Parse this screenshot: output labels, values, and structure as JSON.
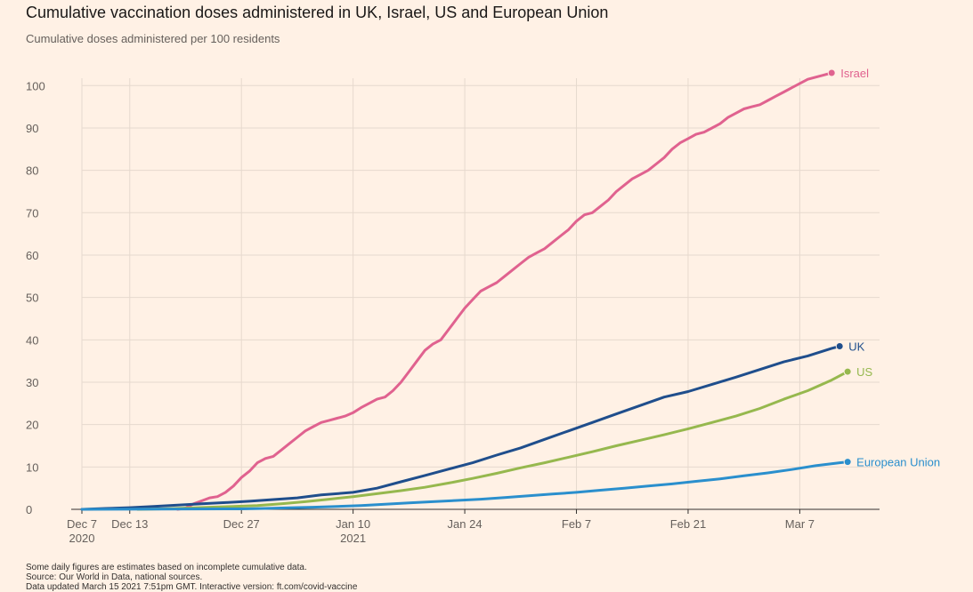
{
  "title": "Cumulative vaccination doses administered in UK, Israel, US and European Union",
  "subtitle": "Cumulative doses administered per 100 residents",
  "footnotes": [
    "Some daily figures are estimates based on incomplete cumulative data.",
    "Source: Our World in Data, national sources.",
    "Data updated March 15 2021 7:51pm GMT. Interactive version: ft.com/covid-vaccine"
  ],
  "colors": {
    "background": "#fff1e5",
    "grid": "#e6d9ce",
    "axis": "#33302e",
    "text": "#66605c"
  },
  "chart_data": {
    "type": "line",
    "title": "Cumulative vaccination doses administered in UK, Israel, US and European Union",
    "subtitle": "Cumulative doses administered per 100 residents",
    "x_type": "date",
    "x_range": [
      "2020-12-07",
      "2021-03-17"
    ],
    "ylim": [
      0,
      103
    ],
    "yticks": [
      0,
      10,
      20,
      30,
      40,
      50,
      60,
      70,
      80,
      90,
      100
    ],
    "xticks": [
      {
        "date": "2020-12-07",
        "label": "Dec 7",
        "sublabel": "2020"
      },
      {
        "date": "2020-12-13",
        "label": "Dec 13",
        "sublabel": ""
      },
      {
        "date": "2020-12-27",
        "label": "Dec 27",
        "sublabel": ""
      },
      {
        "date": "2021-01-10",
        "label": "Jan 10",
        "sublabel": "2021"
      },
      {
        "date": "2021-01-24",
        "label": "Jan 24",
        "sublabel": ""
      },
      {
        "date": "2021-02-07",
        "label": "Feb 7",
        "sublabel": ""
      },
      {
        "date": "2021-02-21",
        "label": "Feb 21",
        "sublabel": ""
      },
      {
        "date": "2021-03-07",
        "label": "Mar 7",
        "sublabel": ""
      }
    ],
    "grid": true,
    "legend": "direct labels at line ends",
    "series": [
      {
        "name": "Israel",
        "color": "#e0628f",
        "points": [
          [
            "2020-12-19",
            0
          ],
          [
            "2020-12-20",
            0.3
          ],
          [
            "2020-12-21",
            1.3
          ],
          [
            "2020-12-22",
            2.0
          ],
          [
            "2020-12-23",
            2.7
          ],
          [
            "2020-12-24",
            3.0
          ],
          [
            "2020-12-25",
            4.0
          ],
          [
            "2020-12-26",
            5.5
          ],
          [
            "2020-12-27",
            7.5
          ],
          [
            "2020-12-28",
            9.0
          ],
          [
            "2020-12-29",
            11.0
          ],
          [
            "2020-12-30",
            12.0
          ],
          [
            "2020-12-31",
            12.5
          ],
          [
            "2021-01-01",
            14.0
          ],
          [
            "2021-01-02",
            15.5
          ],
          [
            "2021-01-03",
            17.0
          ],
          [
            "2021-01-04",
            18.5
          ],
          [
            "2021-01-05",
            19.5
          ],
          [
            "2021-01-06",
            20.5
          ],
          [
            "2021-01-07",
            21.0
          ],
          [
            "2021-01-08",
            21.5
          ],
          [
            "2021-01-09",
            22.0
          ],
          [
            "2021-01-10",
            22.8
          ],
          [
            "2021-01-11",
            24.0
          ],
          [
            "2021-01-12",
            25.0
          ],
          [
            "2021-01-13",
            26.0
          ],
          [
            "2021-01-14",
            26.5
          ],
          [
            "2021-01-15",
            28.0
          ],
          [
            "2021-01-16",
            30.0
          ],
          [
            "2021-01-17",
            32.5
          ],
          [
            "2021-01-18",
            35.0
          ],
          [
            "2021-01-19",
            37.5
          ],
          [
            "2021-01-20",
            39.0
          ],
          [
            "2021-01-21",
            40.0
          ],
          [
            "2021-01-22",
            42.5
          ],
          [
            "2021-01-23",
            45.0
          ],
          [
            "2021-01-24",
            47.5
          ],
          [
            "2021-01-25",
            49.5
          ],
          [
            "2021-01-26",
            51.5
          ],
          [
            "2021-01-27",
            52.5
          ],
          [
            "2021-01-28",
            53.5
          ],
          [
            "2021-01-29",
            55.0
          ],
          [
            "2021-01-30",
            56.5
          ],
          [
            "2021-01-31",
            58.0
          ],
          [
            "2021-02-01",
            59.5
          ],
          [
            "2021-02-02",
            60.5
          ],
          [
            "2021-02-03",
            61.5
          ],
          [
            "2021-02-04",
            63.0
          ],
          [
            "2021-02-05",
            64.5
          ],
          [
            "2021-02-06",
            66.0
          ],
          [
            "2021-02-07",
            68.0
          ],
          [
            "2021-02-08",
            69.5
          ],
          [
            "2021-02-09",
            70.0
          ],
          [
            "2021-02-10",
            71.5
          ],
          [
            "2021-02-11",
            73.0
          ],
          [
            "2021-02-12",
            75.0
          ],
          [
            "2021-02-13",
            76.5
          ],
          [
            "2021-02-14",
            78.0
          ],
          [
            "2021-02-15",
            79.0
          ],
          [
            "2021-02-16",
            80.0
          ],
          [
            "2021-02-17",
            81.5
          ],
          [
            "2021-02-18",
            83.0
          ],
          [
            "2021-02-19",
            85.0
          ],
          [
            "2021-02-20",
            86.5
          ],
          [
            "2021-02-21",
            87.5
          ],
          [
            "2021-02-22",
            88.5
          ],
          [
            "2021-02-23",
            89.0
          ],
          [
            "2021-02-24",
            90.0
          ],
          [
            "2021-02-25",
            91.0
          ],
          [
            "2021-02-26",
            92.5
          ],
          [
            "2021-02-27",
            93.5
          ],
          [
            "2021-02-28",
            94.5
          ],
          [
            "2021-03-01",
            95.0
          ],
          [
            "2021-03-02",
            95.5
          ],
          [
            "2021-03-03",
            96.5
          ],
          [
            "2021-03-04",
            97.5
          ],
          [
            "2021-03-05",
            98.5
          ],
          [
            "2021-03-06",
            99.5
          ],
          [
            "2021-03-07",
            100.5
          ],
          [
            "2021-03-08",
            101.5
          ],
          [
            "2021-03-09",
            102.0
          ],
          [
            "2021-03-10",
            102.5
          ],
          [
            "2021-03-11",
            103.0
          ]
        ]
      },
      {
        "name": "UK",
        "color": "#1f4e8c",
        "points": [
          [
            "2020-12-07",
            0
          ],
          [
            "2020-12-10",
            0.2
          ],
          [
            "2020-12-13",
            0.4
          ],
          [
            "2020-12-16",
            0.7
          ],
          [
            "2020-12-19",
            1.0
          ],
          [
            "2020-12-22",
            1.3
          ],
          [
            "2020-12-25",
            1.6
          ],
          [
            "2020-12-28",
            1.9
          ],
          [
            "2020-12-31",
            2.3
          ],
          [
            "2021-01-03",
            2.7
          ],
          [
            "2021-01-06",
            3.4
          ],
          [
            "2021-01-10",
            4.0
          ],
          [
            "2021-01-13",
            5.0
          ],
          [
            "2021-01-16",
            6.5
          ],
          [
            "2021-01-19",
            8.0
          ],
          [
            "2021-01-22",
            9.5
          ],
          [
            "2021-01-25",
            11.0
          ],
          [
            "2021-01-28",
            12.8
          ],
          [
            "2021-01-31",
            14.5
          ],
          [
            "2021-02-03",
            16.5
          ],
          [
            "2021-02-06",
            18.5
          ],
          [
            "2021-02-09",
            20.5
          ],
          [
            "2021-02-12",
            22.5
          ],
          [
            "2021-02-15",
            24.5
          ],
          [
            "2021-02-18",
            26.5
          ],
          [
            "2021-02-21",
            27.8
          ],
          [
            "2021-02-24",
            29.5
          ],
          [
            "2021-02-27",
            31.2
          ],
          [
            "2021-03-02",
            33.0
          ],
          [
            "2021-03-05",
            34.8
          ],
          [
            "2021-03-08",
            36.2
          ],
          [
            "2021-03-11",
            38.0
          ],
          [
            "2021-03-12",
            38.5
          ]
        ]
      },
      {
        "name": "US",
        "color": "#96b84e",
        "points": [
          [
            "2020-12-14",
            0
          ],
          [
            "2020-12-17",
            0.1
          ],
          [
            "2020-12-20",
            0.3
          ],
          [
            "2020-12-23",
            0.5
          ],
          [
            "2020-12-26",
            0.7
          ],
          [
            "2020-12-29",
            0.9
          ],
          [
            "2021-01-01",
            1.3
          ],
          [
            "2021-01-04",
            1.8
          ],
          [
            "2021-01-07",
            2.4
          ],
          [
            "2021-01-10",
            3.0
          ],
          [
            "2021-01-13",
            3.7
          ],
          [
            "2021-01-16",
            4.4
          ],
          [
            "2021-01-19",
            5.2
          ],
          [
            "2021-01-22",
            6.2
          ],
          [
            "2021-01-25",
            7.3
          ],
          [
            "2021-01-28",
            8.5
          ],
          [
            "2021-01-31",
            9.8
          ],
          [
            "2021-02-03",
            11.0
          ],
          [
            "2021-02-06",
            12.3
          ],
          [
            "2021-02-09",
            13.6
          ],
          [
            "2021-02-12",
            15.0
          ],
          [
            "2021-02-15",
            16.3
          ],
          [
            "2021-02-18",
            17.6
          ],
          [
            "2021-02-21",
            19.0
          ],
          [
            "2021-02-24",
            20.5
          ],
          [
            "2021-02-27",
            22.0
          ],
          [
            "2021-03-02",
            23.8
          ],
          [
            "2021-03-05",
            26.0
          ],
          [
            "2021-03-08",
            28.0
          ],
          [
            "2021-03-11",
            30.5
          ],
          [
            "2021-03-13",
            32.5
          ]
        ]
      },
      {
        "name": "European Union",
        "color": "#2a8fcd",
        "points": [
          [
            "2020-12-07",
            0
          ],
          [
            "2020-12-27",
            0.1
          ],
          [
            "2020-12-30",
            0.2
          ],
          [
            "2021-01-02",
            0.35
          ],
          [
            "2021-01-05",
            0.5
          ],
          [
            "2021-01-08",
            0.7
          ],
          [
            "2021-01-11",
            0.9
          ],
          [
            "2021-01-14",
            1.2
          ],
          [
            "2021-01-17",
            1.5
          ],
          [
            "2021-01-20",
            1.8
          ],
          [
            "2021-01-23",
            2.1
          ],
          [
            "2021-01-26",
            2.4
          ],
          [
            "2021-01-29",
            2.8
          ],
          [
            "2021-02-01",
            3.2
          ],
          [
            "2021-02-04",
            3.6
          ],
          [
            "2021-02-07",
            4.0
          ],
          [
            "2021-02-10",
            4.5
          ],
          [
            "2021-02-13",
            5.0
          ],
          [
            "2021-02-16",
            5.5
          ],
          [
            "2021-02-19",
            6.0
          ],
          [
            "2021-02-22",
            6.6
          ],
          [
            "2021-02-25",
            7.2
          ],
          [
            "2021-02-28",
            7.9
          ],
          [
            "2021-03-03",
            8.6
          ],
          [
            "2021-03-06",
            9.4
          ],
          [
            "2021-03-09",
            10.3
          ],
          [
            "2021-03-12",
            11.0
          ],
          [
            "2021-03-13",
            11.2
          ]
        ]
      }
    ]
  }
}
